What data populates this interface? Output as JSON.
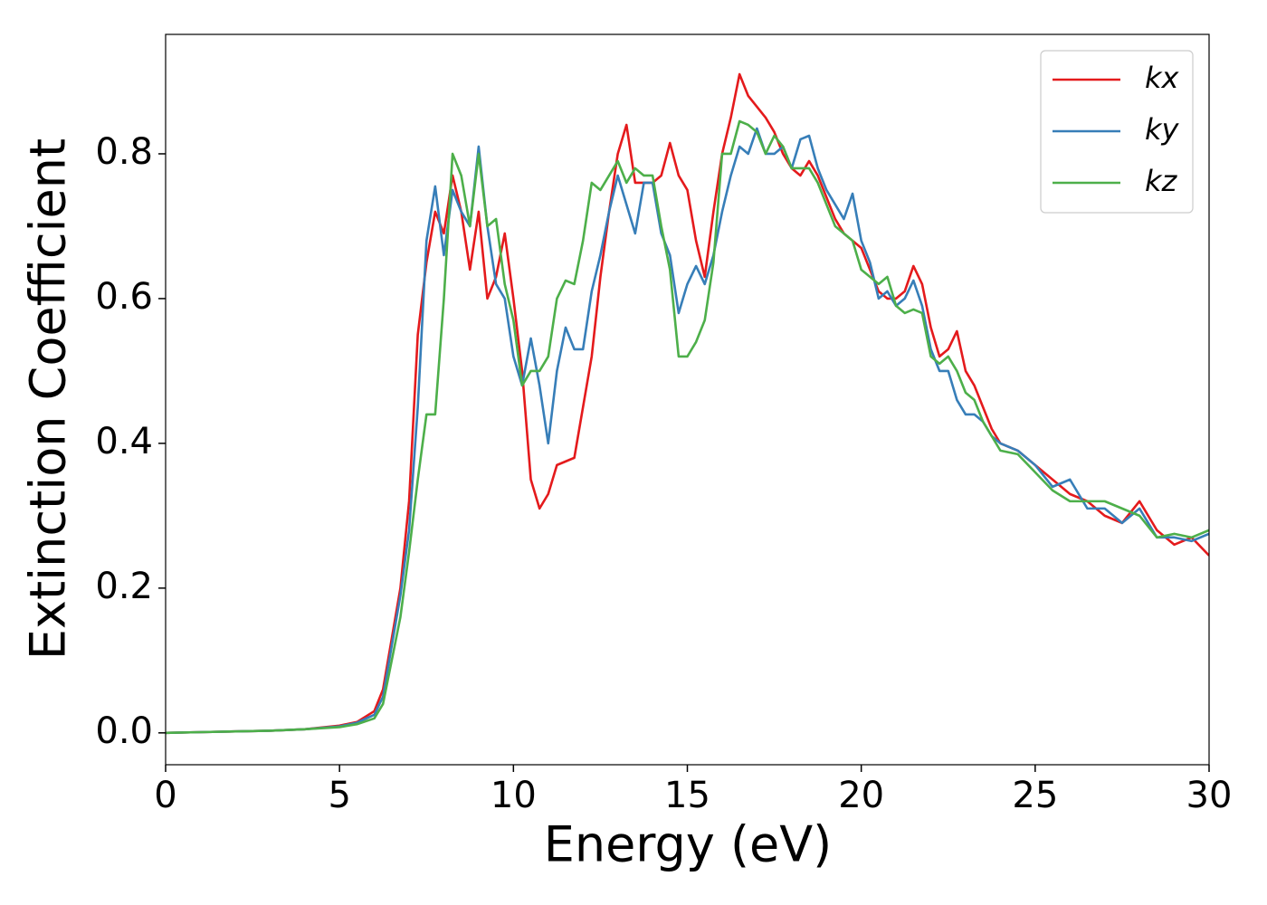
{
  "chart_data": {
    "type": "line",
    "xlabel": "Energy (eV)",
    "ylabel": "Extinction Coefficient",
    "x": [
      0,
      1,
      2,
      3,
      4,
      5,
      5.5,
      6,
      6.25,
      6.5,
      6.75,
      7,
      7.25,
      7.5,
      7.75,
      8,
      8.25,
      8.5,
      8.75,
      9,
      9.25,
      9.5,
      9.75,
      10,
      10.25,
      10.5,
      10.75,
      11,
      11.25,
      11.5,
      11.75,
      12,
      12.25,
      12.5,
      12.75,
      13,
      13.25,
      13.5,
      13.75,
      14,
      14.25,
      14.5,
      14.75,
      15,
      15.25,
      15.5,
      15.75,
      16,
      16.25,
      16.5,
      16.75,
      17,
      17.25,
      17.5,
      17.75,
      18,
      18.25,
      18.5,
      18.75,
      19,
      19.25,
      19.5,
      19.75,
      20,
      20.25,
      20.5,
      20.75,
      21,
      21.25,
      21.5,
      21.75,
      22,
      22.25,
      22.5,
      22.75,
      23,
      23.25,
      23.5,
      23.75,
      24,
      24.5,
      25,
      25.5,
      26,
      26.5,
      27,
      27.5,
      28,
      28.5,
      29,
      29.5,
      30
    ],
    "series": [
      {
        "name": "kx",
        "color": "#e41a1c",
        "values": [
          0,
          0.001,
          0.002,
          0.003,
          0.005,
          0.01,
          0.015,
          0.03,
          0.06,
          0.13,
          0.2,
          0.32,
          0.55,
          0.65,
          0.72,
          0.69,
          0.77,
          0.72,
          0.64,
          0.72,
          0.6,
          0.63,
          0.69,
          0.6,
          0.5,
          0.35,
          0.31,
          0.33,
          0.37,
          0.375,
          0.38,
          0.45,
          0.52,
          0.63,
          0.72,
          0.8,
          0.84,
          0.76,
          0.76,
          0.76,
          0.77,
          0.815,
          0.77,
          0.75,
          0.68,
          0.63,
          0.72,
          0.8,
          0.85,
          0.91,
          0.88,
          0.865,
          0.85,
          0.83,
          0.8,
          0.78,
          0.77,
          0.79,
          0.77,
          0.74,
          0.71,
          0.69,
          0.68,
          0.67,
          0.64,
          0.61,
          0.6,
          0.6,
          0.61,
          0.645,
          0.62,
          0.56,
          0.52,
          0.53,
          0.555,
          0.5,
          0.48,
          0.45,
          0.42,
          0.4,
          0.39,
          0.37,
          0.35,
          0.33,
          0.32,
          0.3,
          0.29,
          0.32,
          0.28,
          0.26,
          0.27,
          0.245
        ]
      },
      {
        "name": "ky",
        "color": "#377eb8",
        "values": [
          0,
          0.001,
          0.002,
          0.003,
          0.005,
          0.009,
          0.014,
          0.025,
          0.05,
          0.12,
          0.19,
          0.28,
          0.45,
          0.68,
          0.755,
          0.66,
          0.75,
          0.72,
          0.7,
          0.81,
          0.7,
          0.62,
          0.6,
          0.52,
          0.48,
          0.545,
          0.48,
          0.4,
          0.5,
          0.56,
          0.53,
          0.53,
          0.61,
          0.66,
          0.72,
          0.77,
          0.73,
          0.69,
          0.76,
          0.76,
          0.69,
          0.66,
          0.58,
          0.62,
          0.645,
          0.62,
          0.66,
          0.72,
          0.77,
          0.81,
          0.8,
          0.835,
          0.8,
          0.8,
          0.81,
          0.78,
          0.82,
          0.825,
          0.78,
          0.75,
          0.73,
          0.71,
          0.745,
          0.68,
          0.65,
          0.6,
          0.61,
          0.59,
          0.6,
          0.625,
          0.59,
          0.53,
          0.5,
          0.5,
          0.46,
          0.44,
          0.44,
          0.43,
          0.41,
          0.4,
          0.39,
          0.37,
          0.34,
          0.35,
          0.31,
          0.31,
          0.29,
          0.31,
          0.27,
          0.27,
          0.265,
          0.275
        ]
      },
      {
        "name": "kz",
        "color": "#4daf4a",
        "values": [
          0,
          0.001,
          0.002,
          0.003,
          0.005,
          0.008,
          0.012,
          0.02,
          0.04,
          0.1,
          0.16,
          0.25,
          0.35,
          0.44,
          0.44,
          0.6,
          0.8,
          0.77,
          0.7,
          0.8,
          0.7,
          0.71,
          0.62,
          0.57,
          0.48,
          0.5,
          0.5,
          0.52,
          0.6,
          0.625,
          0.62,
          0.68,
          0.76,
          0.75,
          0.77,
          0.79,
          0.76,
          0.78,
          0.77,
          0.77,
          0.7,
          0.64,
          0.52,
          0.52,
          0.54,
          0.57,
          0.65,
          0.8,
          0.8,
          0.845,
          0.84,
          0.83,
          0.8,
          0.825,
          0.81,
          0.78,
          0.78,
          0.78,
          0.76,
          0.73,
          0.7,
          0.69,
          0.68,
          0.64,
          0.63,
          0.62,
          0.63,
          0.59,
          0.58,
          0.585,
          0.58,
          0.52,
          0.51,
          0.52,
          0.5,
          0.47,
          0.46,
          0.43,
          0.41,
          0.39,
          0.385,
          0.36,
          0.335,
          0.32,
          0.32,
          0.32,
          0.31,
          0.3,
          0.27,
          0.275,
          0.27,
          0.28
        ]
      }
    ],
    "xlim": [
      0,
      30
    ],
    "ylim": [
      -0.044,
      0.965
    ],
    "xticks": [
      0,
      5,
      10,
      15,
      20,
      25,
      30
    ],
    "yticks": [
      {
        "value": 0,
        "label": "0.0"
      },
      0.2,
      0.4,
      0.6,
      0.8
    ],
    "grid": false,
    "legend": "upper right"
  }
}
